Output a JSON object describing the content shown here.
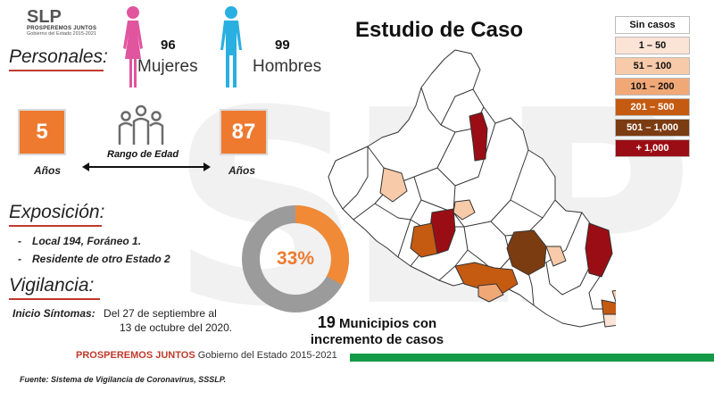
{
  "logo": {
    "main": "SLP",
    "line1": "PROSPEREMOS JUNTOS",
    "line2": "Gobierno del Estado 2015-2021"
  },
  "watermark": "SLP",
  "title": "Estudio de Caso",
  "personales": {
    "heading": "Personales:",
    "mujeres": {
      "count": "96",
      "label": "Mujeres"
    },
    "hombres": {
      "count": "99",
      "label": "Hombres"
    }
  },
  "edad": {
    "min": "5",
    "max": "87",
    "unit": "Años",
    "range_label": "Rango de Edad"
  },
  "exposicion": {
    "heading": "Exposición:",
    "items": [
      "Local  194, Foráneo 1.",
      "Residente de otro Estado 2"
    ]
  },
  "vigilancia": {
    "heading": "Vigilancia:",
    "inicio_label": "Inicio Síntomas:",
    "inicio_value": "Del 27 de septiembre al",
    "inicio_value2": "13 de octubre del 2020."
  },
  "donut": {
    "label": "33%",
    "percent": 33,
    "color": "#f08a36",
    "track": "#9b9b9b"
  },
  "municipios": {
    "count": "19",
    "text1": "Municipios con",
    "text2": "incremento de casos"
  },
  "legend": [
    {
      "label": "Sin casos",
      "color": "#ffffff",
      "text_color": "#111111"
    },
    {
      "label": "1 – 50",
      "color": "#fbe3d6",
      "text_color": "#111111"
    },
    {
      "label": "51 – 100",
      "color": "#f7caa9",
      "text_color": "#111111"
    },
    {
      "label": "101 – 200",
      "color": "#f1a877",
      "text_color": "#111111"
    },
    {
      "label": "201 – 500",
      "color": "#c55a11",
      "text_color": "#ffffff"
    },
    {
      "label": "501 – 1,000",
      "color": "#7b3c12",
      "text_color": "#ffffff"
    },
    {
      "label": "+ 1,000",
      "color": "#9b0d14",
      "text_color": "#ffffff"
    }
  ],
  "footer": {
    "bold": "PROSPEREMOS JUNTOS",
    "text": "Gobierno del Estado 2015-2021",
    "source": "Fuente: Sistema de Vigilancia de Coronavirus, SSSLP."
  },
  "colors": {
    "accent_orange": "#ee7a30",
    "female_icon": "#e0559e",
    "male_icon": "#29b0e0",
    "footer_green": "#159a48",
    "underline_red": "#c0392b"
  }
}
